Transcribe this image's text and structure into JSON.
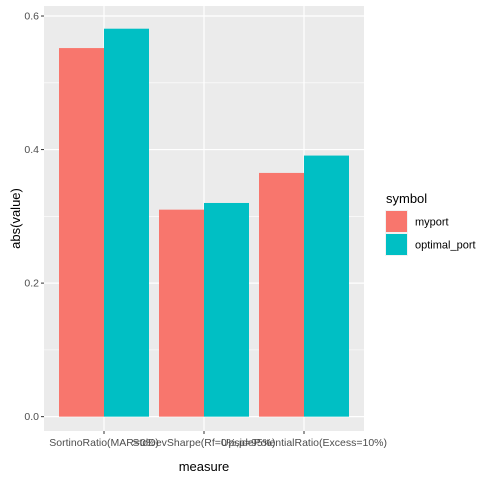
{
  "chart_data": {
    "type": "bar",
    "mode": "dodge",
    "xlabel": "measure",
    "ylabel": "abs(value)",
    "categories": [
      "SortinoRatio(MAR=0%)",
      "StdDevSharpe(Rf=0%,p=95%)",
      "UpsidePotentialRatio(Excess=10%)"
    ],
    "series": [
      {
        "name": "myport",
        "color": "#F8766D",
        "values": [
          0.552,
          0.31,
          0.365
        ]
      },
      {
        "name": "optimal_port",
        "color": "#00BFC4",
        "values": [
          0.581,
          0.32,
          0.391
        ]
      }
    ],
    "ylim": [
      0,
      0.6
    ],
    "yticks": [
      0.0,
      0.2,
      0.4,
      0.6
    ],
    "ytick_labels": [
      "0.0",
      "0.2",
      "0.4",
      "0.6"
    ],
    "grid": true,
    "legend": {
      "title": "symbol",
      "position": "right"
    }
  }
}
